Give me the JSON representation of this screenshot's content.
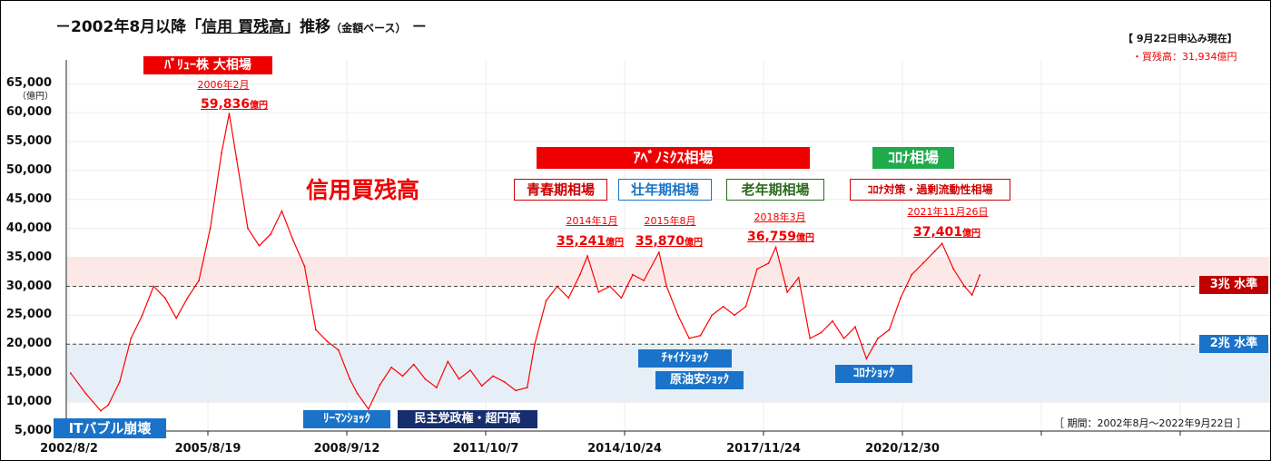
{
  "header": {
    "prefix": "－2002年8月以降「",
    "highlight": "信用 買残高",
    "suffix": "」推移",
    "sub": "（金額ベース）",
    "tail": "－"
  },
  "asof": {
    "line1": "【 9月22日申込み現在】",
    "line2": "・買残高：31,934億円"
  },
  "period": "［ 期間：2002年8月～2022年9月22日 ］",
  "unit": "（億円）",
  "series_label": "信用買残高",
  "levels": {
    "level3": "3兆 水準",
    "level2": "2兆 水準"
  },
  "annotations": {
    "value_market": "ﾊﾞﾘｭｰ株 大相場",
    "abenomics": "ｱﾍﾞﾉﾐｸｽ相場",
    "corona": "ｺﾛﾅ相場",
    "youth": "青春期相場",
    "prime": "壮年期相場",
    "old": "老年期相場",
    "liquidity": "ｺﾛﾅ対策・過剰流動性相場",
    "it_bubble": "ITバブル崩壊",
    "lehman": "ﾘｰﾏﾝｼｮｯｸ",
    "dpj": "民主党政権・超円高",
    "china": "ﾁｬｲﾅｼｮｯｸ",
    "oil": "原油安ｼｮｯｸ",
    "corona_shock": "ｺﾛﾅｼｮｯｸ"
  },
  "peaks": [
    {
      "date": "2006年2月",
      "value": "59,836",
      "unit": "億円"
    },
    {
      "date": "2014年1月",
      "value": "35,241",
      "unit": "億円"
    },
    {
      "date": "2015年8月",
      "value": "35,870",
      "unit": "億円"
    },
    {
      "date": "2018年3月",
      "value": "36,759",
      "unit": "億円"
    },
    {
      "date": "2021年11月26日",
      "value": "37,401",
      "unit": "億円"
    }
  ],
  "colors": {
    "line": "#ff0000",
    "band_high": "#fde8e8",
    "band_low": "#e6eff8",
    "red": "#e00000",
    "green": "#1faa4b",
    "blue": "#1a73c8",
    "navy": "#172e6e",
    "level3": "#c00000",
    "level2": "#1a73c8"
  },
  "chart_data": {
    "type": "line",
    "title": "－2002年8月以降「信用 買残高」推移（金額ベース）－",
    "ylabel": "（億円）",
    "xlabel": "",
    "ylim": [
      5000,
      65000
    ],
    "y_ticks": [
      "5,000",
      "10,000",
      "15,000",
      "20,000",
      "25,000",
      "30,000",
      "35,000",
      "40,000",
      "45,000",
      "50,000",
      "55,000",
      "60,000",
      "65,000"
    ],
    "x_ticks": [
      "2002/8/2",
      "2005/8/19",
      "2008/9/12",
      "2011/10/7",
      "2014/10/24",
      "2017/11/24",
      "2020/12/30"
    ],
    "reference_lines": [
      30000,
      20000
    ],
    "bands": [
      [
        30000,
        35000
      ],
      [
        10000,
        20000
      ]
    ],
    "series": [
      {
        "name": "信用買残高",
        "x": [
          "2002-08",
          "2002-12",
          "2003-04",
          "2003-06",
          "2003-09",
          "2003-12",
          "2004-03",
          "2004-06",
          "2004-09",
          "2004-12",
          "2005-03",
          "2005-06",
          "2005-09",
          "2005-12",
          "2006-02",
          "2006-04",
          "2006-07",
          "2006-10",
          "2007-01",
          "2007-04",
          "2007-07",
          "2007-10",
          "2008-01",
          "2008-04",
          "2008-07",
          "2008-10",
          "2008-12",
          "2009-03",
          "2009-06",
          "2009-09",
          "2009-12",
          "2010-03",
          "2010-06",
          "2010-09",
          "2010-12",
          "2011-03",
          "2011-06",
          "2011-09",
          "2011-12",
          "2012-03",
          "2012-06",
          "2012-09",
          "2012-11",
          "2013-02",
          "2013-05",
          "2013-08",
          "2013-11",
          "2014-01",
          "2014-04",
          "2014-07",
          "2014-10",
          "2015-01",
          "2015-04",
          "2015-08",
          "2015-10",
          "2016-01",
          "2016-04",
          "2016-07",
          "2016-10",
          "2017-01",
          "2017-04",
          "2017-07",
          "2017-10",
          "2018-01",
          "2018-03",
          "2018-06",
          "2018-09",
          "2018-12",
          "2019-03",
          "2019-06",
          "2019-09",
          "2019-12",
          "2020-03",
          "2020-06",
          "2020-09",
          "2020-12",
          "2021-03",
          "2021-06",
          "2021-09",
          "2021-11",
          "2022-02",
          "2022-05",
          "2022-07",
          "2022-09"
        ],
        "y": [
          15000,
          11500,
          8500,
          9500,
          13500,
          21000,
          25000,
          30000,
          28000,
          24500,
          28000,
          31000,
          40000,
          53000,
          59836,
          52000,
          40000,
          37000,
          39000,
          43000,
          38000,
          33500,
          22500,
          20500,
          19000,
          14000,
          11500,
          8800,
          13000,
          16000,
          14500,
          16500,
          14000,
          12500,
          17000,
          14000,
          15500,
          12800,
          14500,
          13500,
          12000,
          12500,
          20000,
          27500,
          30000,
          28000,
          32000,
          35241,
          29000,
          30000,
          28000,
          32000,
          31000,
          35870,
          30000,
          25000,
          21000,
          21500,
          25000,
          26500,
          25000,
          26500,
          33000,
          34000,
          36759,
          29000,
          31500,
          21000,
          22000,
          24000,
          21000,
          23000,
          17500,
          21000,
          22500,
          28000,
          32000,
          34000,
          36000,
          37401,
          33000,
          30000,
          28500,
          31934
        ]
      }
    ]
  }
}
